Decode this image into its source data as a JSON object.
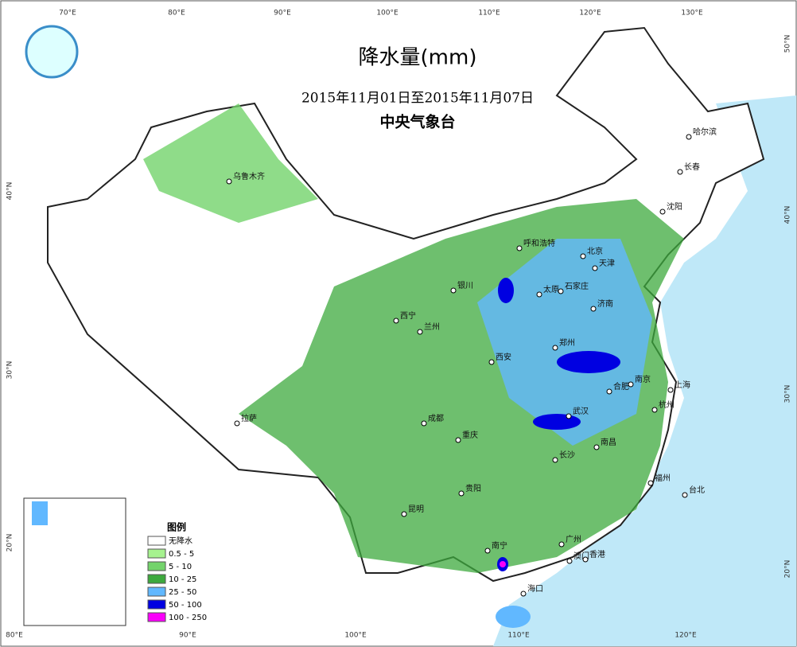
{
  "header": {
    "title": "降水量(mm)",
    "date_range": "2015年11月01日至2015年11月07日",
    "agency": "中央气象台"
  },
  "legend": {
    "title": "图例",
    "items": [
      {
        "label": "无降水",
        "color": "#ffffff"
      },
      {
        "label": "0.5 - 5",
        "color": "#a6f28f"
      },
      {
        "label": "5 - 10",
        "color": "#73d36b"
      },
      {
        "label": "10 - 25",
        "color": "#3da93d"
      },
      {
        "label": "25 - 50",
        "color": "#61b8ff"
      },
      {
        "label": "50 - 100",
        "color": "#0000e1"
      },
      {
        "label": "100 - 250",
        "color": "#fa00fa"
      }
    ]
  },
  "top_longitudes": [
    "70°E",
    "80°E",
    "90°E",
    "100°E",
    "110°E",
    "120°E",
    "130°E"
  ],
  "bottom_longitudes": [
    "80°E",
    "90°E",
    "100°E",
    "110°E",
    "120°E"
  ],
  "left_latitudes": [
    "40°N",
    "30°N",
    "20°N"
  ],
  "right_latitudes": [
    "50°N",
    "40°N",
    "30°N",
    "20°N"
  ],
  "cities": [
    "乌鲁木齐",
    "哈尔滨",
    "长春",
    "沈阳",
    "呼和浩特",
    "北京",
    "天津",
    "银川",
    "太原",
    "石家庄",
    "济南",
    "西宁",
    "兰州",
    "郑州",
    "西安",
    "南京",
    "合肥",
    "上海",
    "杭州",
    "成都",
    "武汉",
    "重庆",
    "拉萨",
    "长沙",
    "南昌",
    "贵阳",
    "福州",
    "台北",
    "昆明",
    "南宁",
    "广州",
    "澳门",
    "香港",
    "海口"
  ]
}
